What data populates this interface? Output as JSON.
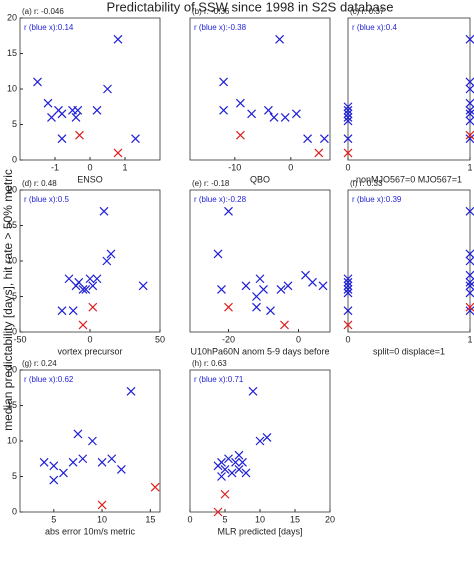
{
  "title": "Predictability of SSW since 1998 in S2S database",
  "ylabel": "median predictability [days], hit rate > 50%  metric",
  "chart_data": [
    {
      "type": "scatter",
      "annotation": "(a) r: -0.046",
      "r_label": "r (blue x):0.14",
      "xlabel": "ENSO",
      "xlim": [
        -2,
        2
      ],
      "xticks": [
        -1,
        0,
        1
      ],
      "ylim": [
        0,
        20
      ],
      "yticks": [
        0,
        5,
        10,
        15,
        20
      ],
      "series": [
        {
          "color": "#1f1fd8",
          "x": [
            -1.5,
            -1.2,
            -1.1,
            -0.9,
            -0.8,
            -0.8,
            -0.5,
            -0.4,
            -0.35,
            0.2,
            0.5,
            0.8,
            1.3
          ],
          "values": [
            11,
            8,
            6,
            7,
            3,
            6.5,
            7,
            6,
            7,
            7,
            10,
            17,
            3
          ]
        },
        {
          "color": "#e02020",
          "x": [
            -0.3,
            0.8
          ],
          "values": [
            3.5,
            1
          ]
        }
      ]
    },
    {
      "type": "scatter",
      "annotation": "(b) r: -0.36",
      "r_label": "r (blue x):-0.38",
      "xlabel": "QBO",
      "xlim": [
        -18,
        7
      ],
      "xticks": [
        -10,
        0
      ],
      "ylim": [
        0,
        20
      ],
      "series": [
        {
          "color": "#1f1fd8",
          "x": [
            -12,
            -12,
            -9,
            -7,
            -4,
            -3,
            -2,
            -1,
            1,
            3,
            6
          ],
          "values": [
            11,
            7,
            8,
            6.5,
            7,
            6,
            17,
            6,
            6.5,
            3,
            3
          ]
        },
        {
          "color": "#e02020",
          "x": [
            -9,
            5
          ],
          "values": [
            3.5,
            1
          ]
        }
      ]
    },
    {
      "type": "scatter",
      "annotation": "(c) r: 0.37",
      "r_label": "r (blue x):0.4",
      "xlabel": "nonMJO567=0 MJO567=1",
      "xlim": [
        0,
        1
      ],
      "xticks": [
        0,
        1
      ],
      "ylim": [
        0,
        20
      ],
      "series": [
        {
          "color": "#1f1fd8",
          "x": [
            0,
            0,
            0,
            0,
            0,
            0,
            1,
            1,
            1,
            1,
            1,
            1,
            1,
            1
          ],
          "values": [
            7.5,
            7,
            6.5,
            6,
            5.5,
            3,
            17,
            11,
            10,
            8,
            7,
            6.5,
            5.5,
            3
          ]
        },
        {
          "color": "#e02020",
          "x": [
            0,
            1
          ],
          "values": [
            1,
            3.5
          ]
        }
      ]
    },
    {
      "type": "scatter",
      "annotation": "(d) r: 0.48",
      "r_label": "r (blue x):0.5",
      "xlabel": "vortex precursor",
      "xlim": [
        -50,
        50
      ],
      "xticks": [
        -50,
        0,
        50
      ],
      "ylim": [
        0,
        20
      ],
      "yticks": [
        0,
        5,
        10,
        15,
        20
      ],
      "series": [
        {
          "color": "#1f1fd8",
          "x": [
            -20,
            -15,
            -12,
            -10,
            -8,
            -5,
            -3,
            0,
            2,
            5,
            10,
            12,
            15,
            38
          ],
          "values": [
            3,
            7.5,
            3,
            6.5,
            7,
            6,
            6,
            7.5,
            6.5,
            7.5,
            17,
            10,
            11,
            6.5
          ]
        },
        {
          "color": "#e02020",
          "x": [
            -5,
            2
          ],
          "values": [
            1,
            3.5
          ]
        }
      ]
    },
    {
      "type": "scatter",
      "annotation": "(e) r: -0.18",
      "r_label": "r (blue x):-0.28",
      "xlabel": "U10hPa60N anom 5-9 days before",
      "xlim": [
        -31,
        9
      ],
      "xticks": [
        -20,
        0
      ],
      "ylim": [
        0,
        20
      ],
      "series": [
        {
          "color": "#1f1fd8",
          "x": [
            -23,
            -22,
            -20,
            -15,
            -12,
            -12,
            -11,
            -10,
            -8,
            -5,
            -3,
            2,
            4,
            7
          ],
          "values": [
            11,
            6,
            17,
            6.5,
            3.5,
            5,
            7.5,
            6,
            3,
            6,
            6.5,
            8,
            7,
            6.5
          ]
        },
        {
          "color": "#e02020",
          "x": [
            -20,
            -4
          ],
          "values": [
            3.5,
            1
          ]
        }
      ]
    },
    {
      "type": "scatter",
      "annotation": "(f) r: 0.33",
      "r_label": "r (blue x):0.39",
      "xlabel": "split=0 displace=1",
      "xlim": [
        0,
        1
      ],
      "xticks": [
        0,
        1
      ],
      "ylim": [
        0,
        20
      ],
      "series": [
        {
          "color": "#1f1fd8",
          "x": [
            0,
            0,
            0,
            0,
            0,
            0,
            1,
            1,
            1,
            1,
            1,
            1,
            1,
            1
          ],
          "values": [
            7.5,
            7,
            6.5,
            6,
            5.5,
            3,
            17,
            11,
            10,
            8,
            7,
            6.5,
            5.5,
            3
          ]
        },
        {
          "color": "#e02020",
          "x": [
            0,
            1
          ],
          "values": [
            1,
            3.5
          ]
        }
      ]
    },
    {
      "type": "scatter",
      "annotation": "(g) r: 0.24",
      "r_label": "r (blue x):0.62",
      "xlabel": "abs error 10m/s metric",
      "xlim": [
        1.5,
        16
      ],
      "xticks": [
        5,
        10,
        15
      ],
      "ylim": [
        0,
        20
      ],
      "yticks": [
        0,
        5,
        10,
        15,
        20
      ],
      "series": [
        {
          "color": "#1f1fd8",
          "x": [
            4,
            5,
            5,
            6,
            7,
            7.5,
            8,
            9,
            10,
            11,
            12,
            13
          ],
          "values": [
            7,
            6.5,
            4.5,
            5.5,
            7,
            11,
            7.5,
            10,
            7,
            7.5,
            6,
            17
          ]
        },
        {
          "color": "#e02020",
          "x": [
            10,
            15.5
          ],
          "values": [
            1,
            3.5
          ]
        }
      ]
    },
    {
      "type": "scatter",
      "annotation": "(h) r: 0.63",
      "r_label": "r (blue x):0.71",
      "xlabel": "MLR predicted [days]",
      "xlim": [
        0,
        20
      ],
      "xticks": [
        0,
        5,
        10,
        15,
        20
      ],
      "ylim": [
        0,
        20
      ],
      "series": [
        {
          "color": "#1f1fd8",
          "x": [
            4,
            4.5,
            4.5,
            5,
            5.5,
            6,
            6.5,
            7,
            7.5,
            8,
            9,
            10,
            11,
            7
          ],
          "values": [
            6.5,
            5,
            7,
            6,
            7.5,
            5.5,
            7,
            6,
            7,
            5.5,
            17,
            10,
            10.5,
            8
          ]
        },
        {
          "color": "#e02020",
          "x": [
            4,
            5
          ],
          "values": [
            0,
            2.5
          ]
        }
      ]
    }
  ]
}
